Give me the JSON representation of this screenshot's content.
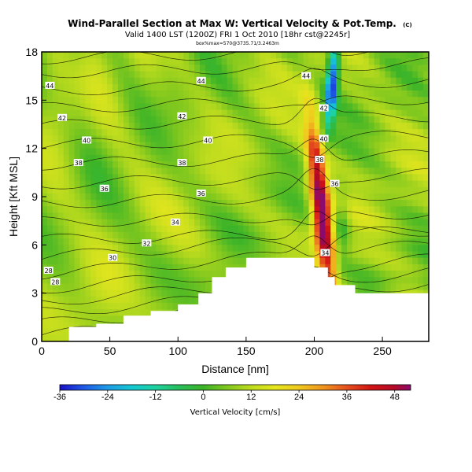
{
  "chart_data": {
    "type": "heatmap",
    "title": "Wind-Parallel Section at Max W: Vertical Velocity & Pot.Temp.",
    "title_mark": "(C)",
    "subtitle": "Valid 1400 LST (1200Z) FRI 1 Oct 2010 [18hr cst@2245r]",
    "subtitle_small": "box%max=570@3735.71/3.2463m",
    "xlabel": "Distance [nm]",
    "ylabel": "Height [Kft MSL]",
    "xlim": [
      0,
      284
    ],
    "ylim": [
      0,
      18
    ],
    "x_ticks": [
      0,
      50,
      100,
      150,
      200,
      250
    ],
    "y_ticks": [
      0,
      3,
      6,
      9,
      12,
      15,
      18
    ],
    "colorbar": {
      "label": "Vertical Velocity [cm/s]",
      "min": -36,
      "max": 52,
      "ticks": [
        -36,
        -24,
        -12,
        0,
        12,
        24,
        36,
        48
      ],
      "stops": [
        {
          "value": -36,
          "color": "#1a10c8"
        },
        {
          "value": -30,
          "color": "#1e5ae6"
        },
        {
          "value": -24,
          "color": "#1e9be6"
        },
        {
          "value": -18,
          "color": "#14c8d2"
        },
        {
          "value": -12,
          "color": "#1ed2a0"
        },
        {
          "value": -6,
          "color": "#28be5a"
        },
        {
          "value": 0,
          "color": "#3cb428"
        },
        {
          "value": 6,
          "color": "#82c81e"
        },
        {
          "value": 12,
          "color": "#bedc1e"
        },
        {
          "value": 18,
          "color": "#e6e61e"
        },
        {
          "value": 24,
          "color": "#f0c81e"
        },
        {
          "value": 30,
          "color": "#f0961e"
        },
        {
          "value": 36,
          "color": "#e6501e"
        },
        {
          "value": 42,
          "color": "#d21414"
        },
        {
          "value": 48,
          "color": "#b40a28"
        },
        {
          "value": 52,
          "color": "#8c0a6e"
        }
      ]
    },
    "terrain": [
      [
        0,
        0.0
      ],
      [
        20,
        0.0
      ],
      [
        20,
        0.9
      ],
      [
        40,
        0.9
      ],
      [
        40,
        1.1
      ],
      [
        60,
        1.1
      ],
      [
        60,
        1.6
      ],
      [
        80,
        1.6
      ],
      [
        80,
        1.9
      ],
      [
        100,
        1.9
      ],
      [
        100,
        2.3
      ],
      [
        115,
        2.3
      ],
      [
        115,
        3.0
      ],
      [
        125,
        3.0
      ],
      [
        125,
        4.0
      ],
      [
        135,
        4.0
      ],
      [
        135,
        4.6
      ],
      [
        150,
        4.6
      ],
      [
        150,
        5.2
      ],
      [
        200,
        5.2
      ],
      [
        200,
        4.6
      ],
      [
        210,
        4.6
      ],
      [
        210,
        4.0
      ],
      [
        215,
        4.0
      ],
      [
        215,
        3.5
      ],
      [
        230,
        3.5
      ],
      [
        230,
        3.0
      ],
      [
        284,
        3.0
      ]
    ],
    "updraft": {
      "x": 206,
      "y": 7.5,
      "max": 50
    },
    "downdraft": {
      "x": 210,
      "y": 16.0,
      "min": -30
    },
    "contour_labels": [
      {
        "x": 6,
        "y": 15.9,
        "text": "44"
      },
      {
        "x": 15,
        "y": 13.9,
        "text": "42"
      },
      {
        "x": 33,
        "y": 12.5,
        "text": "40"
      },
      {
        "x": 27,
        "y": 11.1,
        "text": "38"
      },
      {
        "x": 46,
        "y": 9.5,
        "text": "36"
      },
      {
        "x": 5,
        "y": 4.4,
        "text": "28"
      },
      {
        "x": 10,
        "y": 3.7,
        "text": "28"
      },
      {
        "x": 52,
        "y": 5.2,
        "text": "30"
      },
      {
        "x": 77,
        "y": 6.1,
        "text": "32"
      },
      {
        "x": 98,
        "y": 7.4,
        "text": "34"
      },
      {
        "x": 117,
        "y": 9.2,
        "text": "36"
      },
      {
        "x": 103,
        "y": 11.1,
        "text": "38"
      },
      {
        "x": 122,
        "y": 12.5,
        "text": "40"
      },
      {
        "x": 103,
        "y": 14.0,
        "text": "42"
      },
      {
        "x": 117,
        "y": 16.2,
        "text": "44"
      },
      {
        "x": 194,
        "y": 16.5,
        "text": "44"
      },
      {
        "x": 207,
        "y": 14.5,
        "text": "42"
      },
      {
        "x": 207,
        "y": 12.6,
        "text": "40"
      },
      {
        "x": 204,
        "y": 11.3,
        "text": "38"
      },
      {
        "x": 215,
        "y": 9.8,
        "text": "36"
      },
      {
        "x": 208,
        "y": 5.5,
        "text": "34"
      }
    ]
  }
}
